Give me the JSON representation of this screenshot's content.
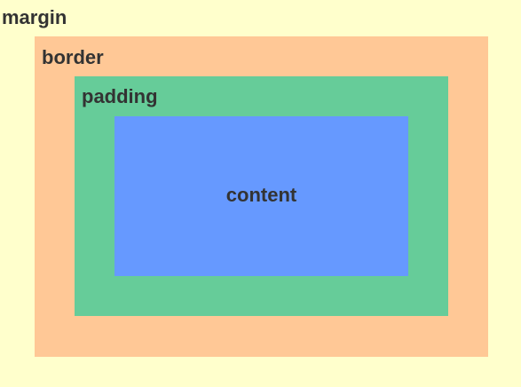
{
  "diagram": {
    "layers": {
      "margin": {
        "label": "margin",
        "color": "#FFFFCC"
      },
      "border": {
        "label": "border",
        "color": "#FFC896"
      },
      "padding": {
        "label": "padding",
        "color": "#66CC99"
      },
      "content": {
        "label": "content",
        "color": "#6699FF"
      }
    },
    "text_color": "#333333"
  }
}
